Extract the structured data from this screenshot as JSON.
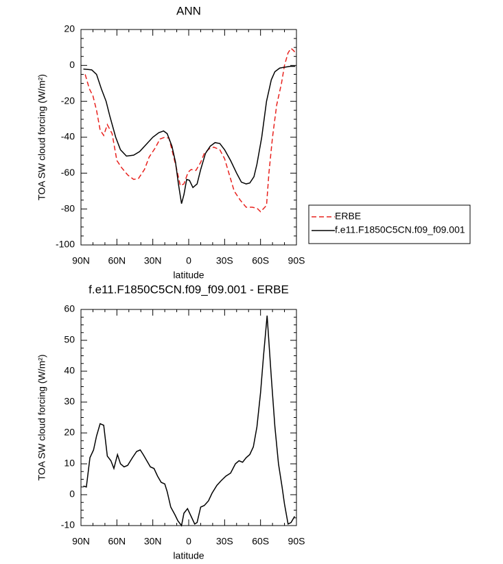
{
  "chart_data": [
    {
      "type": "line",
      "title": "ANN",
      "x_label": "latitude",
      "y_label": "TOA SW cloud forcing (W/m²)",
      "xlim": [
        90,
        -90
      ],
      "xticks": [
        {
          "value": 90,
          "label": "90N"
        },
        {
          "value": 60,
          "label": "60N"
        },
        {
          "value": 30,
          "label": "30N"
        },
        0,
        {
          "value": -30,
          "label": "30S"
        },
        {
          "value": -60,
          "label": "60S"
        },
        {
          "value": -90,
          "label": "90S"
        }
      ],
      "ylim": [
        -100,
        20
      ],
      "yticks": [
        -100,
        -80,
        -60,
        -40,
        -20,
        0,
        20
      ],
      "legend": "right",
      "series": [
        {
          "name": "ERBE",
          "color": "#e8201c",
          "dash": true,
          "x": [
            86.5,
            83,
            80,
            77,
            74,
            71,
            68,
            64,
            60,
            56,
            51,
            46,
            42,
            37,
            33,
            28,
            24,
            20,
            16.5,
            14,
            10,
            7,
            4,
            0.5,
            -2,
            -6,
            -10,
            -13,
            -17,
            -21,
            -26,
            -30,
            -34,
            -38,
            -43,
            -48,
            -53,
            -57,
            -60,
            -65,
            -67,
            -70,
            -73.5,
            -77.5,
            -80,
            -83,
            -85.5,
            -88,
            -89.5
          ],
          "values": [
            -5,
            -13,
            -17,
            -25,
            -36,
            -39,
            -33,
            -38,
            -53,
            -57,
            -61,
            -63.5,
            -63,
            -58,
            -51,
            -46,
            -41,
            -40,
            -40.5,
            -47,
            -58,
            -67,
            -66,
            -59.5,
            -58,
            -58.5,
            -54,
            -49,
            -46.5,
            -45.5,
            -47,
            -52,
            -61,
            -70,
            -75,
            -79,
            -79,
            -79.5,
            -81.5,
            -78,
            -60,
            -40,
            -22,
            -10,
            0,
            7,
            9.5,
            8,
            6
          ]
        },
        {
          "name": "f.e11.F1850C5CN.f09_f09.001",
          "color": "#000000",
          "dash": false,
          "x": [
            88,
            81,
            77,
            73,
            69,
            66,
            61,
            57,
            52,
            46,
            41,
            35.5,
            30,
            25,
            21,
            18,
            14,
            11,
            8.6,
            6,
            4,
            1.7,
            -0.6,
            -3.5,
            -7,
            -10,
            -14,
            -18,
            -22,
            -26,
            -30,
            -35,
            -40,
            -44,
            -48,
            -51,
            -54.5,
            -57,
            -61,
            -65,
            -69,
            -72,
            -76,
            -80,
            -85,
            -89
          ],
          "values": [
            -2,
            -2.5,
            -5,
            -13,
            -20,
            -28,
            -40,
            -47,
            -50.5,
            -50,
            -48,
            -44,
            -40,
            -37.5,
            -36.5,
            -38,
            -45,
            -54,
            -66,
            -77,
            -72,
            -63.5,
            -64,
            -68,
            -66,
            -58,
            -49,
            -45,
            -43,
            -43.5,
            -47,
            -53,
            -60,
            -65,
            -66,
            -65.5,
            -62,
            -55,
            -40,
            -20,
            -8,
            -3.5,
            -1.5,
            -1,
            -0.5,
            -0.5
          ]
        }
      ]
    },
    {
      "type": "line",
      "title": "f.e11.F1850C5CN.f09_f09.001 - ERBE",
      "x_label": "latitude",
      "y_label": "TOA SW cloud forcing (W/m²)",
      "xlim": [
        90,
        -90
      ],
      "xticks": [
        {
          "value": 90,
          "label": "90N"
        },
        {
          "value": 60,
          "label": "60N"
        },
        {
          "value": 30,
          "label": "30N"
        },
        0,
        {
          "value": -30,
          "label": "30S"
        },
        {
          "value": -60,
          "label": "60S"
        },
        {
          "value": -90,
          "label": "90S"
        }
      ],
      "ylim": [
        -10,
        60
      ],
      "yticks": [
        -10,
        0,
        10,
        20,
        30,
        40,
        50,
        60
      ],
      "series": [
        {
          "color": "#000000",
          "dash": false,
          "x": [
            88,
            85.5,
            82.5,
            79.5,
            77,
            74,
            71,
            68,
            65,
            62.5,
            59.5,
            57,
            54,
            51,
            47,
            43.5,
            40.5,
            38,
            35,
            32,
            29,
            26,
            23,
            20,
            18,
            15,
            11.5,
            9,
            6,
            4,
            1,
            -2,
            -5,
            -7,
            -10,
            -13,
            -16.5,
            -19.5,
            -23.5,
            -27,
            -31,
            -35,
            -39,
            -42,
            -45,
            -48,
            -51,
            -54,
            -57,
            -60,
            -62.5,
            -65.5,
            -69,
            -72,
            -75,
            -78,
            -80,
            -83,
            -85.5,
            -88.5
          ],
          "values": [
            2.8,
            2.5,
            12,
            14.5,
            19,
            23,
            22.5,
            12.5,
            11,
            8.5,
            13,
            10,
            9,
            9.5,
            12,
            14,
            14.5,
            13,
            11,
            9,
            8.5,
            6,
            4,
            3.5,
            1,
            -4,
            -6.5,
            -8.5,
            -10,
            -6,
            -4.5,
            -7,
            -9.5,
            -9,
            -4,
            -3.5,
            -2,
            0.5,
            3,
            4.5,
            6,
            7,
            10,
            11,
            10.5,
            12,
            13,
            15.5,
            22,
            33,
            45,
            58,
            38,
            22,
            10,
            2.5,
            -3,
            -9.5,
            -9,
            -7
          ]
        }
      ]
    }
  ]
}
